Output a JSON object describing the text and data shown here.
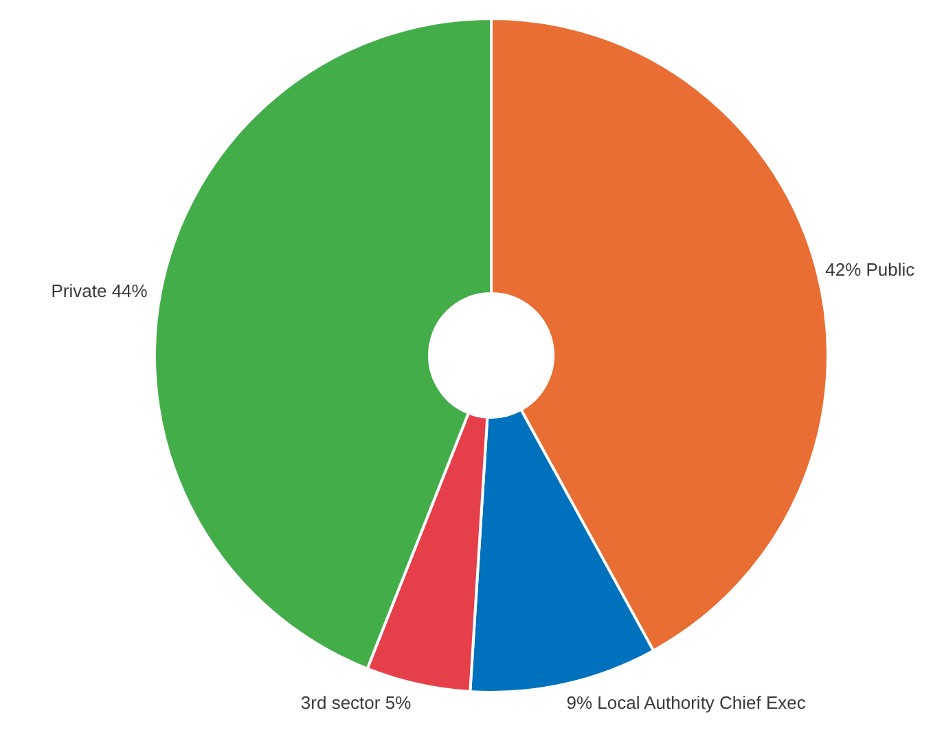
{
  "chart_data": {
    "type": "donut",
    "categories": [
      "42% Public",
      "9% Local Authority Chief Exec",
      "3rd sector  5%",
      "Private  44%"
    ],
    "values": [
      42,
      9,
      5,
      44
    ],
    "colors": [
      "#e86e33",
      "#0071bc",
      "#e5404a",
      "#43ad4a"
    ]
  }
}
